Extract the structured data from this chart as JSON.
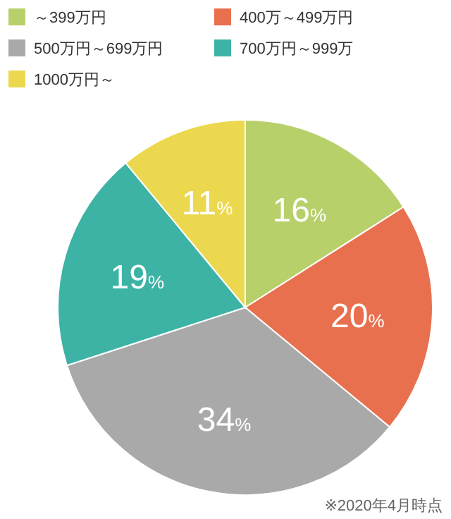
{
  "chart_data": {
    "type": "pie",
    "categories": [
      "～399万円",
      "400万～499万円",
      "500万円～699万円",
      "700万円～999万",
      "1000万円～"
    ],
    "values": [
      16,
      20,
      34,
      19,
      11
    ],
    "colors": [
      "#b8d06a",
      "#e8704e",
      "#a9a9a9",
      "#3db3a6",
      "#ecd84e"
    ],
    "value_labels": [
      "16%",
      "20%",
      "34%",
      "19%",
      "11%"
    ],
    "legend": "top left",
    "annotations": [
      "※2020年4月時点"
    ]
  }
}
